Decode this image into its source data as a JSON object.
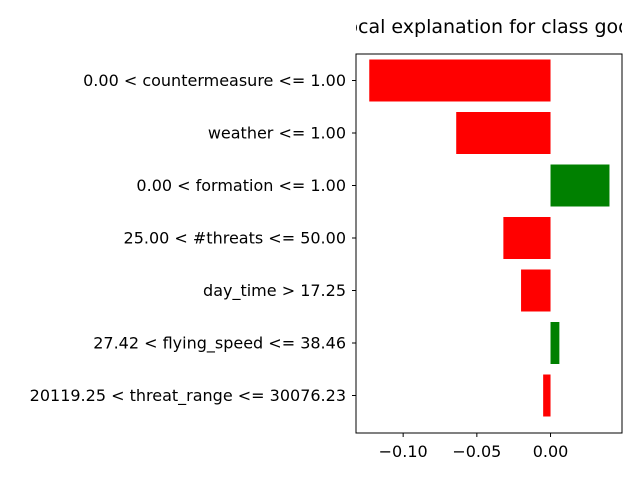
{
  "chart_data": {
    "type": "bar",
    "orientation": "horizontal",
    "title": "Local explanation for class good",
    "xlabel": "",
    "ylabel": "",
    "xlim": [
      -0.132,
      0.0485
    ],
    "x_ticks": [
      -0.1,
      -0.05,
      0.0
    ],
    "x_tick_labels": [
      "−0.10",
      "−0.05",
      "0.00"
    ],
    "grid": false,
    "legend": "none",
    "colors": {
      "positive": "#008000",
      "negative": "#ff0000"
    },
    "categories": [
      "0.00 < countermeasure <= 1.00",
      "weather <= 1.00",
      "0.00 < formation <= 1.00",
      "25.00 < #threats <= 50.00",
      "day_time > 17.25",
      "27.42 < flying_speed <= 38.46",
      "20119.25 < threat_range <= 30076.23"
    ],
    "values": [
      -0.123,
      -0.064,
      0.04,
      -0.032,
      -0.02,
      0.006,
      -0.005
    ]
  }
}
